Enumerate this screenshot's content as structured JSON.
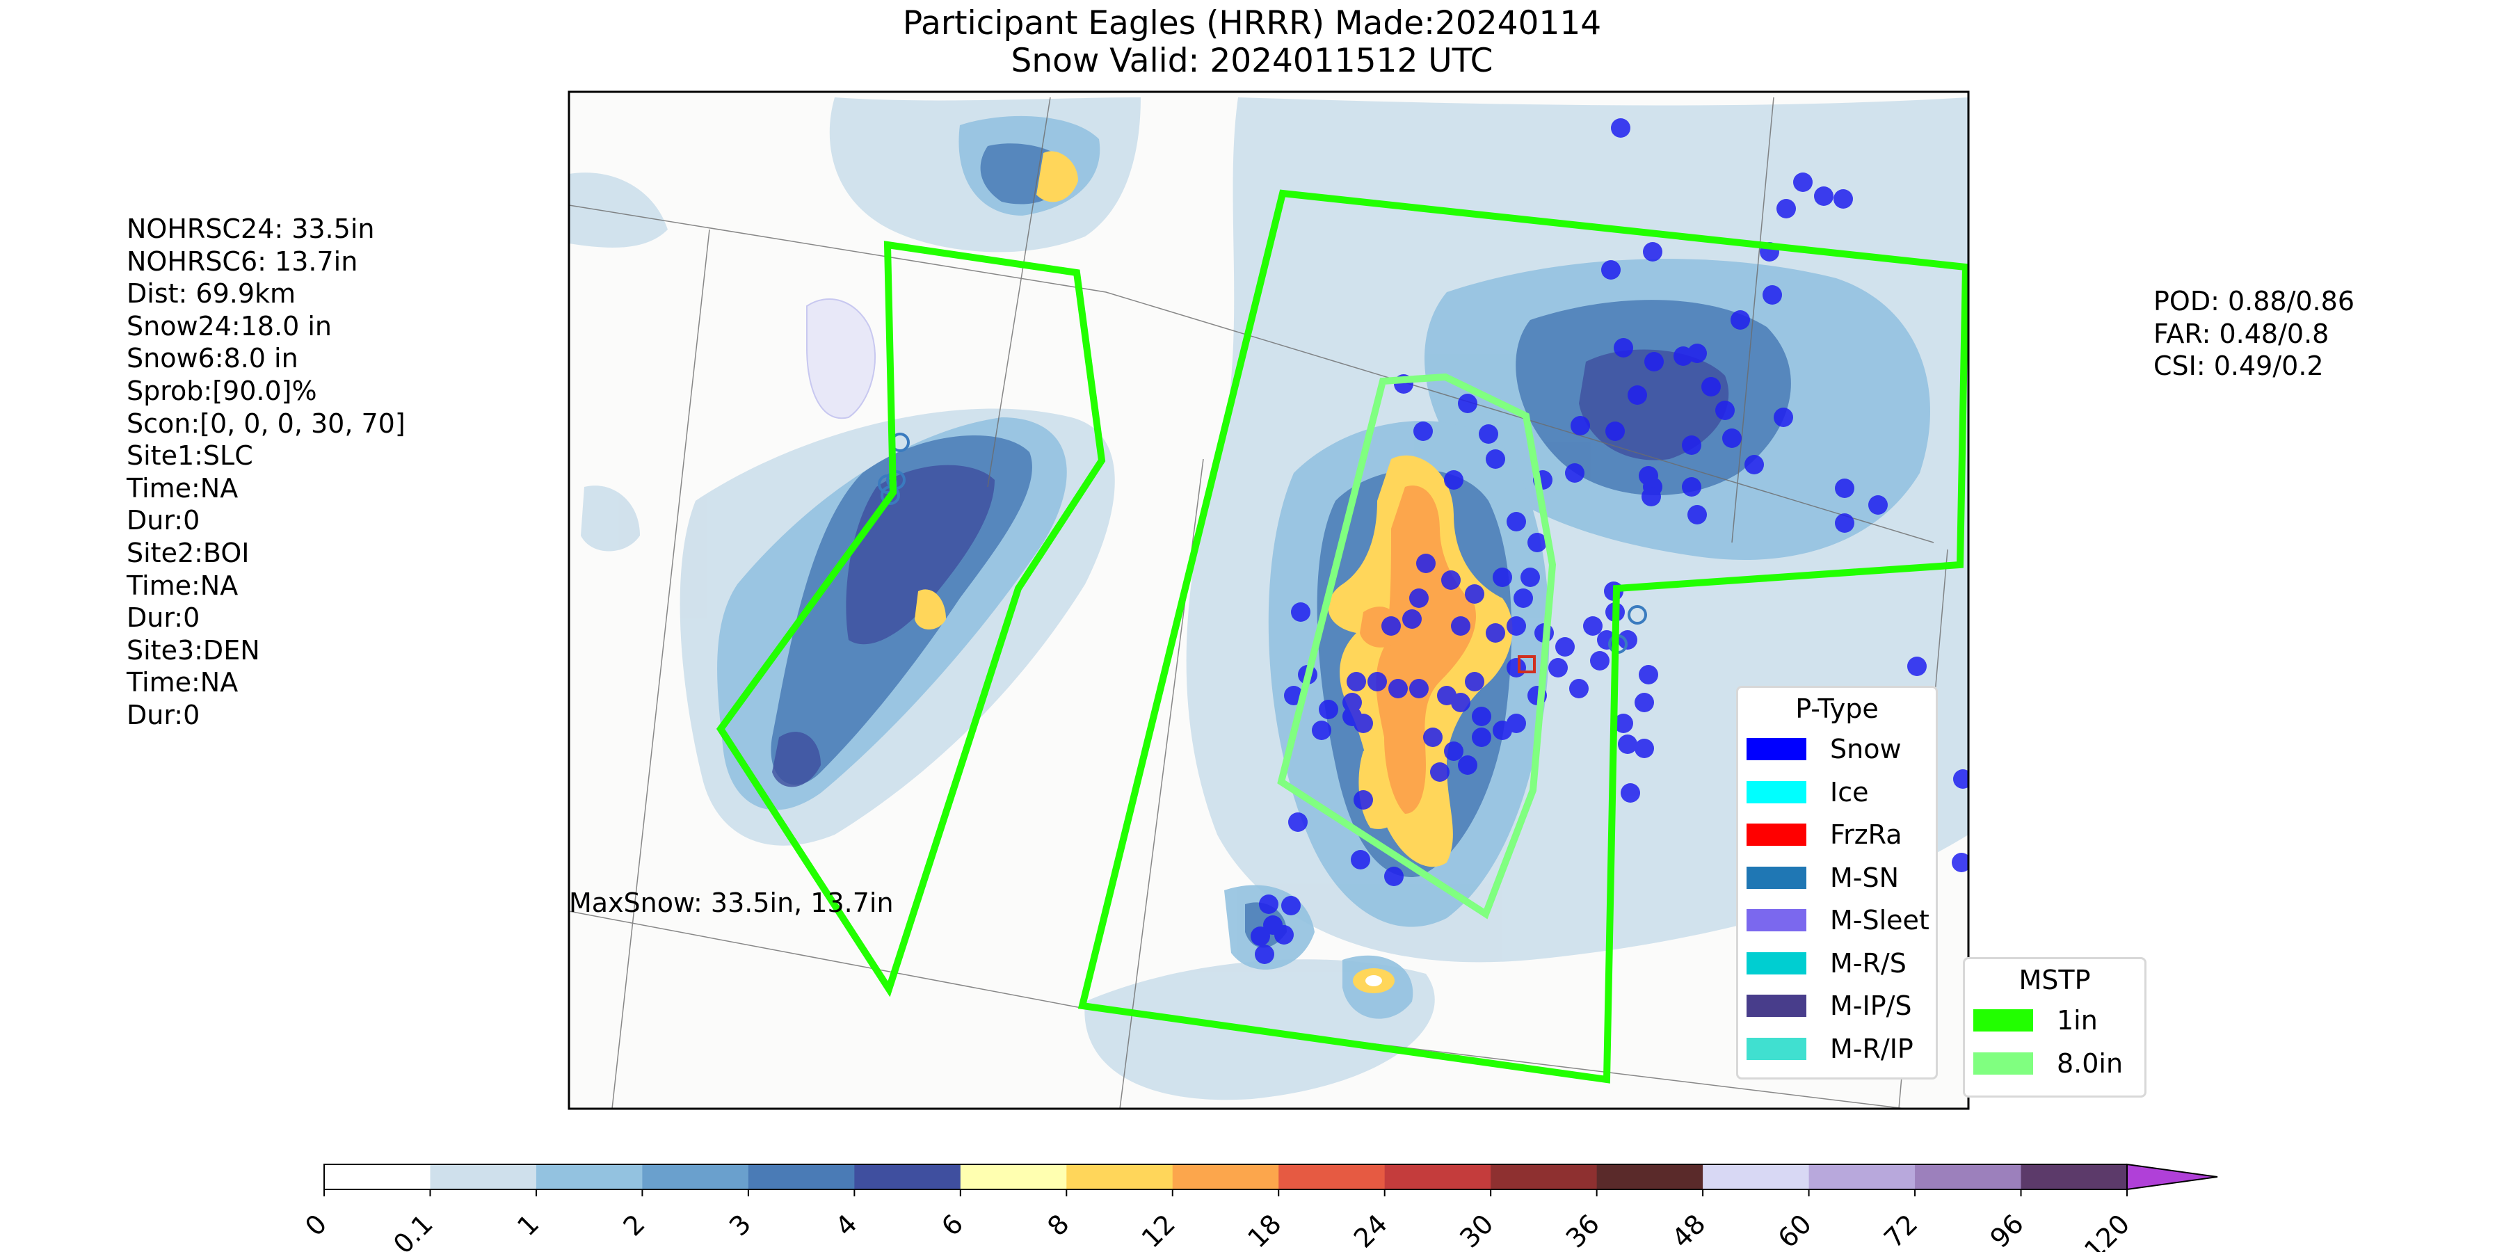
{
  "title": {
    "line1": "Participant Eagles (HRRR) Made:20240114",
    "line2": "Snow Valid: 2024011512 UTC"
  },
  "left_stats": [
    "NOHRSC24: 33.5in",
    "NOHRSC6: 13.7in",
    "Dist: 69.9km",
    "Snow24:18.0 in",
    "Snow6:8.0 in",
    "Sprob:[90.0]%",
    "Scon:[0, 0, 0, 30, 70]",
    "Site1:SLC",
    "Time:NA",
    "Dur:0",
    "Site2:BOI",
    "Time:NA",
    "Dur:0",
    "Site3:DEN",
    "Time:NA",
    "Dur:0"
  ],
  "right_stats": [
    "POD: 0.88/0.86",
    "FAR: 0.48/0.8",
    "CSI: 0.49/0.2"
  ],
  "map_annotation": "MaxSnow: 33.5in, 13.7in",
  "ptype_legend": {
    "title": "P-Type",
    "items": [
      {
        "label": "Snow",
        "color": "#0000ff"
      },
      {
        "label": "Ice",
        "color": "#00ffff"
      },
      {
        "label": "FrzRa",
        "color": "#ff0000"
      },
      {
        "label": "M-SN",
        "color": "#1f77b4"
      },
      {
        "label": "M-Sleet",
        "color": "#7b68ee"
      },
      {
        "label": "M-R/S",
        "color": "#00ced1"
      },
      {
        "label": "M-IP/S",
        "color": "#483d8b"
      },
      {
        "label": "M-R/IP",
        "color": "#40e0d0"
      }
    ]
  },
  "mstp_legend": {
    "title": "MSTP",
    "items": [
      {
        "label": "1in",
        "color": "#22ff00"
      },
      {
        "label": "8.0in",
        "color": "#80ff80"
      }
    ]
  },
  "colorbar": {
    "ticks": [
      "0",
      "0.1",
      "1",
      "2",
      "3",
      "4",
      "6",
      "8",
      "12",
      "18",
      "24",
      "30",
      "36",
      "48",
      "60",
      "72",
      "96",
      "120"
    ],
    "colors": [
      "#ffffff",
      "#cfe0ec",
      "#93c2e0",
      "#6aa0cd",
      "#4a7bb6",
      "#3f4f9f",
      "#ffffb0",
      "#ffd65a",
      "#fca64c",
      "#e65a42",
      "#c43c3c",
      "#8e3030",
      "#5a2a2a",
      "#d8d8f4",
      "#b8a8dc",
      "#9c80bc",
      "#5c3a6a"
    ],
    "extend_color": "#b040d8"
  }
}
